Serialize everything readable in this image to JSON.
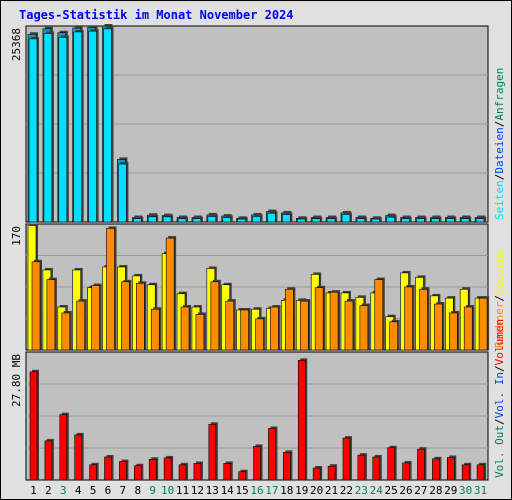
{
  "chart_data": [
    {
      "type": "bar",
      "title": "Tages-Statistik im Monat November 2024",
      "ylabel": "25368",
      "ylim": [
        0,
        25368
      ],
      "categories": [
        "1",
        "2",
        "3",
        "4",
        "5",
        "6",
        "7",
        "8",
        "9",
        "10",
        "11",
        "12",
        "13",
        "14",
        "15",
        "16",
        "17",
        "18",
        "19",
        "20",
        "21",
        "22",
        "23",
        "24",
        "25",
        "26",
        "27",
        "28",
        "29",
        "30",
        "31"
      ],
      "category_colors": [
        "#000000",
        "#000000",
        "#00805c",
        "#000000",
        "#000000",
        "#000000",
        "#000000",
        "#000000",
        "#00805c",
        "#00805c",
        "#000000",
        "#000000",
        "#000000",
        "#000000",
        "#000000",
        "#00805c",
        "#00805c",
        "#000000",
        "#000000",
        "#000000",
        "#000000",
        "#000000",
        "#00805c",
        "#00805c",
        "#000000",
        "#000000",
        "#000000",
        "#000000",
        "#000000",
        "#00805c",
        "#00805c"
      ],
      "series": [
        {
          "name": "Anfragen",
          "color": "#00805c",
          "values": [
            24300,
            25000,
            24500,
            25100,
            25200,
            25368,
            8100,
            580,
            880,
            830,
            580,
            580,
            920,
            770,
            480,
            920,
            1350,
            1180,
            480,
            580,
            580,
            1180,
            580,
            480,
            830,
            580,
            580,
            580,
            580,
            580,
            580
          ]
        },
        {
          "name": "Dateien",
          "color": "#0040ff",
          "values": [
            23700,
            24400,
            23900,
            24600,
            24700,
            25000,
            7500,
            430,
            680,
            680,
            430,
            430,
            720,
            580,
            380,
            720,
            1150,
            970,
            380,
            430,
            430,
            980,
            430,
            380,
            630,
            430,
            430,
            430,
            430,
            430,
            430
          ]
        },
        {
          "name": "Seiten",
          "color": "#00e0ff",
          "values": [
            null,
            null,
            null,
            null,
            null,
            null,
            null,
            null,
            null,
            null,
            null,
            null,
            null,
            null,
            null,
            null,
            null,
            null,
            null,
            null,
            null,
            null,
            null,
            null,
            null,
            null,
            null,
            null,
            null,
            null,
            null
          ]
        }
      ]
    },
    {
      "type": "bar",
      "ylabel": "170",
      "ylim": [
        0,
        170
      ],
      "series": [
        {
          "name": "Besuche",
          "color": "#ffff00",
          "values": [
            168,
            108,
            58,
            108,
            84,
            112,
            112,
            100,
            88,
            130,
            76,
            58,
            110,
            88,
            54,
            55,
            56,
            67,
            67,
            102,
            77,
            77,
            71,
            77,
            45,
            104,
            98,
            73,
            70,
            82,
            70
          ]
        },
        {
          "name": "Rechner",
          "color": "#ff8c00",
          "values": [
            119,
            95,
            50,
            66,
            87,
            164,
            92,
            90,
            55,
            151,
            58,
            48,
            92,
            66,
            54,
            42,
            58,
            82,
            66,
            84,
            78,
            66,
            60,
            95,
            38,
            85,
            82,
            62,
            50,
            58,
            70
          ]
        }
      ]
    },
    {
      "type": "bar",
      "ylabel": "27.80 MB",
      "ylim": [
        0,
        27.8
      ],
      "series": [
        {
          "name": "Volumen",
          "color": "#ff0000",
          "values": [
            23.5,
            8.5,
            14.2,
            9.8,
            3.3,
            5.0,
            4.0,
            3.1,
            4.5,
            4.8,
            3.3,
            3.6,
            12.1,
            3.6,
            1.8,
            7.3,
            11.2,
            6.0,
            26.0,
            2.6,
            3.0,
            9.1,
            5.4,
            5.0,
            7.0,
            3.7,
            6.7,
            4.6,
            4.9,
            3.3,
            3.3
          ]
        },
        {
          "name": "Vol. In",
          "color": "#0040ff",
          "values": [
            null,
            null,
            null,
            null,
            null,
            null,
            null,
            null,
            null,
            null,
            null,
            null,
            null,
            null,
            null,
            null,
            null,
            null,
            null,
            null,
            null,
            null,
            null,
            null,
            null,
            null,
            null,
            null,
            null,
            null,
            null
          ]
        },
        {
          "name": "Vol. Out",
          "color": "#00805c",
          "values": [
            null,
            null,
            null,
            null,
            null,
            null,
            null,
            null,
            null,
            null,
            null,
            null,
            null,
            null,
            null,
            null,
            null,
            null,
            null,
            null,
            null,
            null,
            null,
            null,
            null,
            null,
            null,
            null,
            null,
            null,
            null
          ]
        }
      ]
    }
  ],
  "legend_separator": "/"
}
